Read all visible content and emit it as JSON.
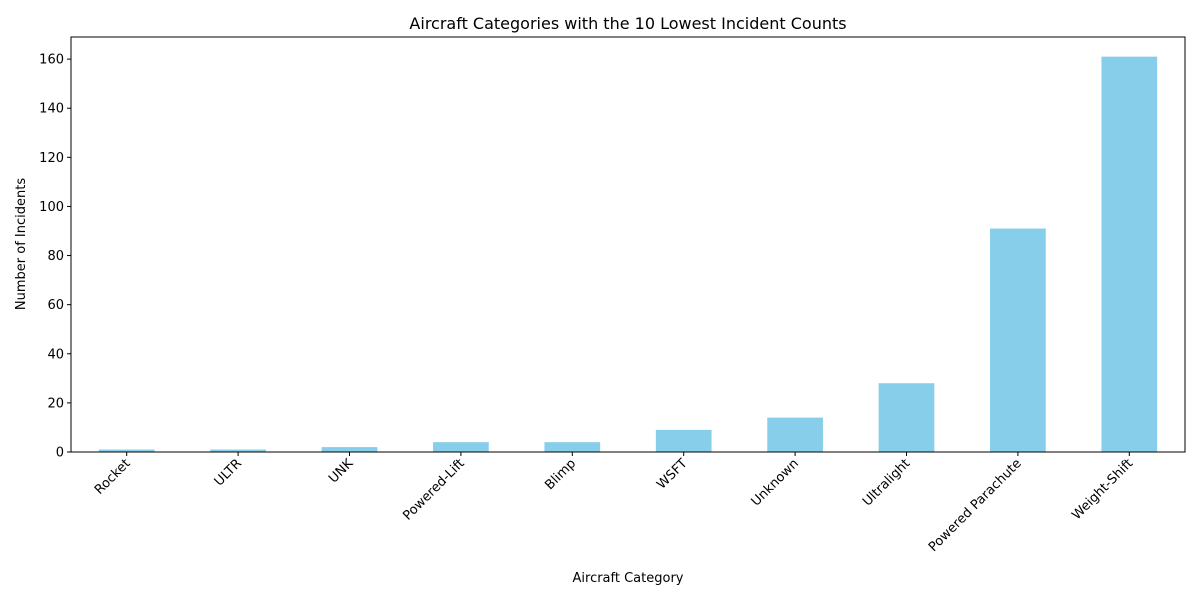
{
  "chart_data": {
    "type": "bar",
    "title": "Aircraft Categories with the 10 Lowest Incident Counts",
    "xlabel": "Aircraft Category",
    "ylabel": "Number of Incidents",
    "categories": [
      "Rocket",
      "ULTR",
      "UNK",
      "Powered-Lift",
      "Blimp",
      "WSFT",
      "Unknown",
      "Ultralight",
      "Powered Parachute",
      "Weight-Shift"
    ],
    "values": [
      1,
      1,
      2,
      4,
      4,
      9,
      14,
      28,
      91,
      161
    ],
    "ylim": [
      0,
      169
    ],
    "yticks": [
      0,
      20,
      40,
      60,
      80,
      100,
      120,
      140,
      160
    ],
    "bar_color": "#87ceeb",
    "grid": false,
    "legend": "none"
  }
}
